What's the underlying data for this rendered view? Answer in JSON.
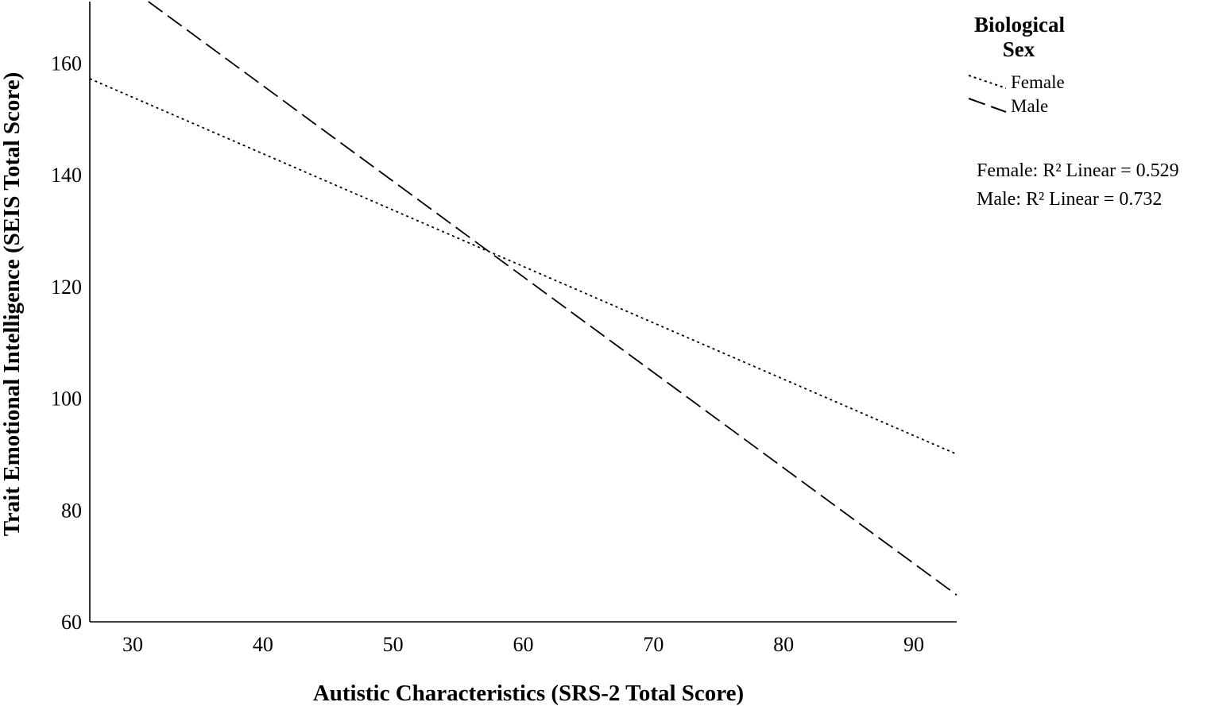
{
  "chart_data": {
    "type": "line",
    "title": "",
    "xlabel": "Autistic Characteristics (SRS-2 Total Score)",
    "ylabel": "Trait Emotional Intelligence (SEIS Total Score)",
    "xlim": [
      26.7,
      93.3
    ],
    "ylim": [
      60,
      171
    ],
    "xticks": [
      30,
      40,
      50,
      60,
      70,
      80,
      90
    ],
    "yticks": [
      60,
      80,
      100,
      120,
      140,
      160
    ],
    "grid": false,
    "legend": {
      "title_lines": [
        "Biological",
        "Sex"
      ],
      "placement": "top-right",
      "entries": [
        {
          "label": "Female",
          "style": "dotted",
          "color": "#000000"
        },
        {
          "label": "Male",
          "style": "dashed",
          "color": "#000000"
        }
      ]
    },
    "series": [
      {
        "name": "Female",
        "style": "dotted",
        "color": "#000000",
        "x": [
          26.7,
          93.3
        ],
        "y": [
          157.2,
          90.0
        ]
      },
      {
        "name": "Male",
        "style": "dashed",
        "color": "#000000",
        "x": [
          31.2,
          93.3
        ],
        "y": [
          171.0,
          64.8
        ]
      }
    ],
    "annotations": [
      "Female: R² Linear = 0.529",
      "Male: R² Linear = 0.732"
    ]
  }
}
